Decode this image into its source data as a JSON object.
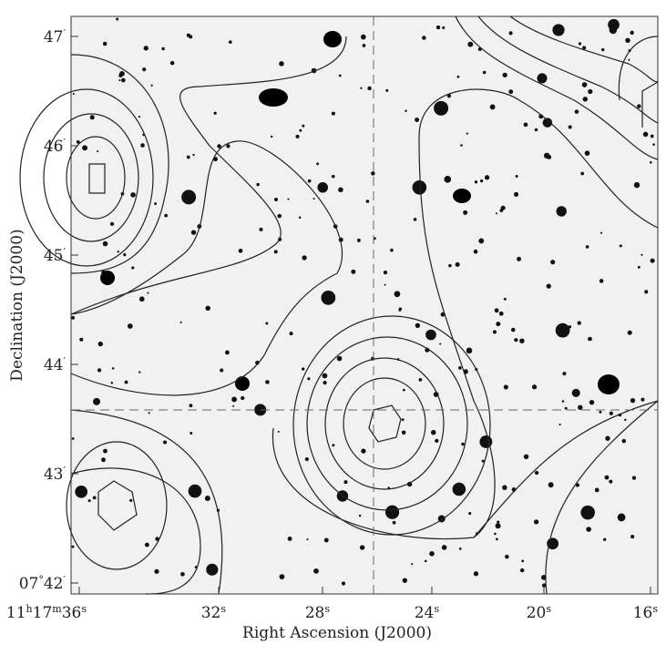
{
  "axes": {
    "x_label": "Right Ascension (J2000)",
    "y_label": "Declination (J2000)",
    "x_ticks": [
      "11h17m36s",
      "32s",
      "28s",
      "24s",
      "20s",
      "16s"
    ],
    "y_ticks": [
      "47′",
      "46′",
      "45′",
      "44′",
      "43′",
      "07°42′"
    ]
  }
}
